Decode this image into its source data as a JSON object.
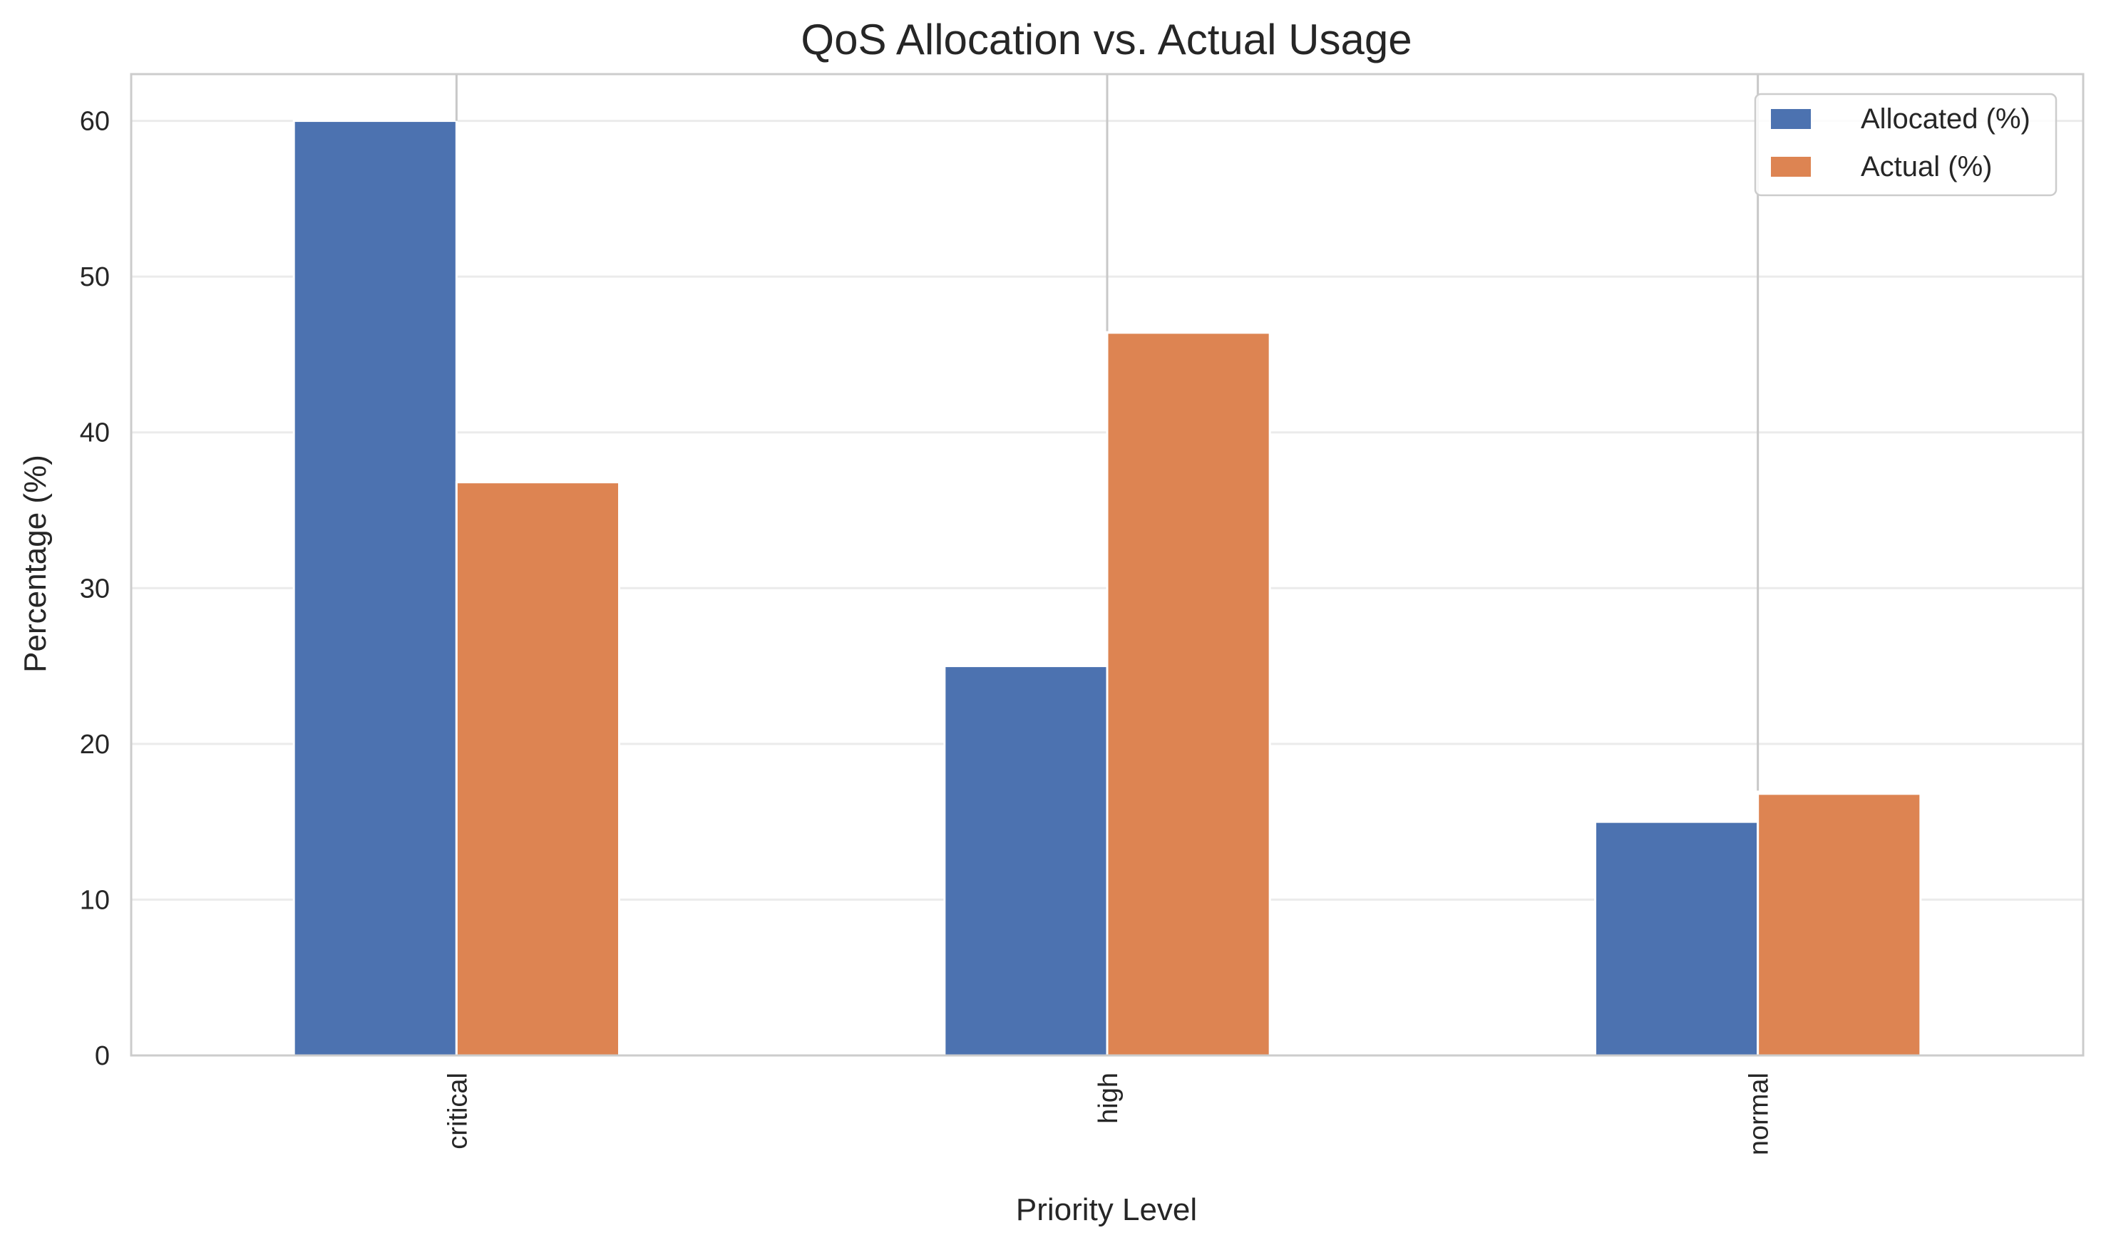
{
  "chart_data": {
    "type": "bar",
    "title": "QoS Allocation vs. Actual Usage",
    "xlabel": "Priority Level",
    "ylabel": "Percentage (%)",
    "categories": [
      "critical",
      "high",
      "normal"
    ],
    "series": [
      {
        "name": "Allocated (%)",
        "values": [
          60,
          25,
          15
        ],
        "color": "#4c72b0"
      },
      {
        "name": "Actual (%)",
        "values": [
          36.8,
          46.4,
          16.8
        ],
        "color": "#dd8452"
      }
    ],
    "error_bars": {
      "series": "Allocated (%)",
      "upper": [
        63,
        63,
        63
      ],
      "lower": [
        60,
        46.5,
        17
      ]
    },
    "ylim": [
      0,
      63
    ],
    "yticks": [
      "0",
      "10",
      "20",
      "30",
      "40",
      "50",
      "60"
    ],
    "grid": true,
    "legend_position": "top-right",
    "tick_label_rotation": "vertical"
  }
}
